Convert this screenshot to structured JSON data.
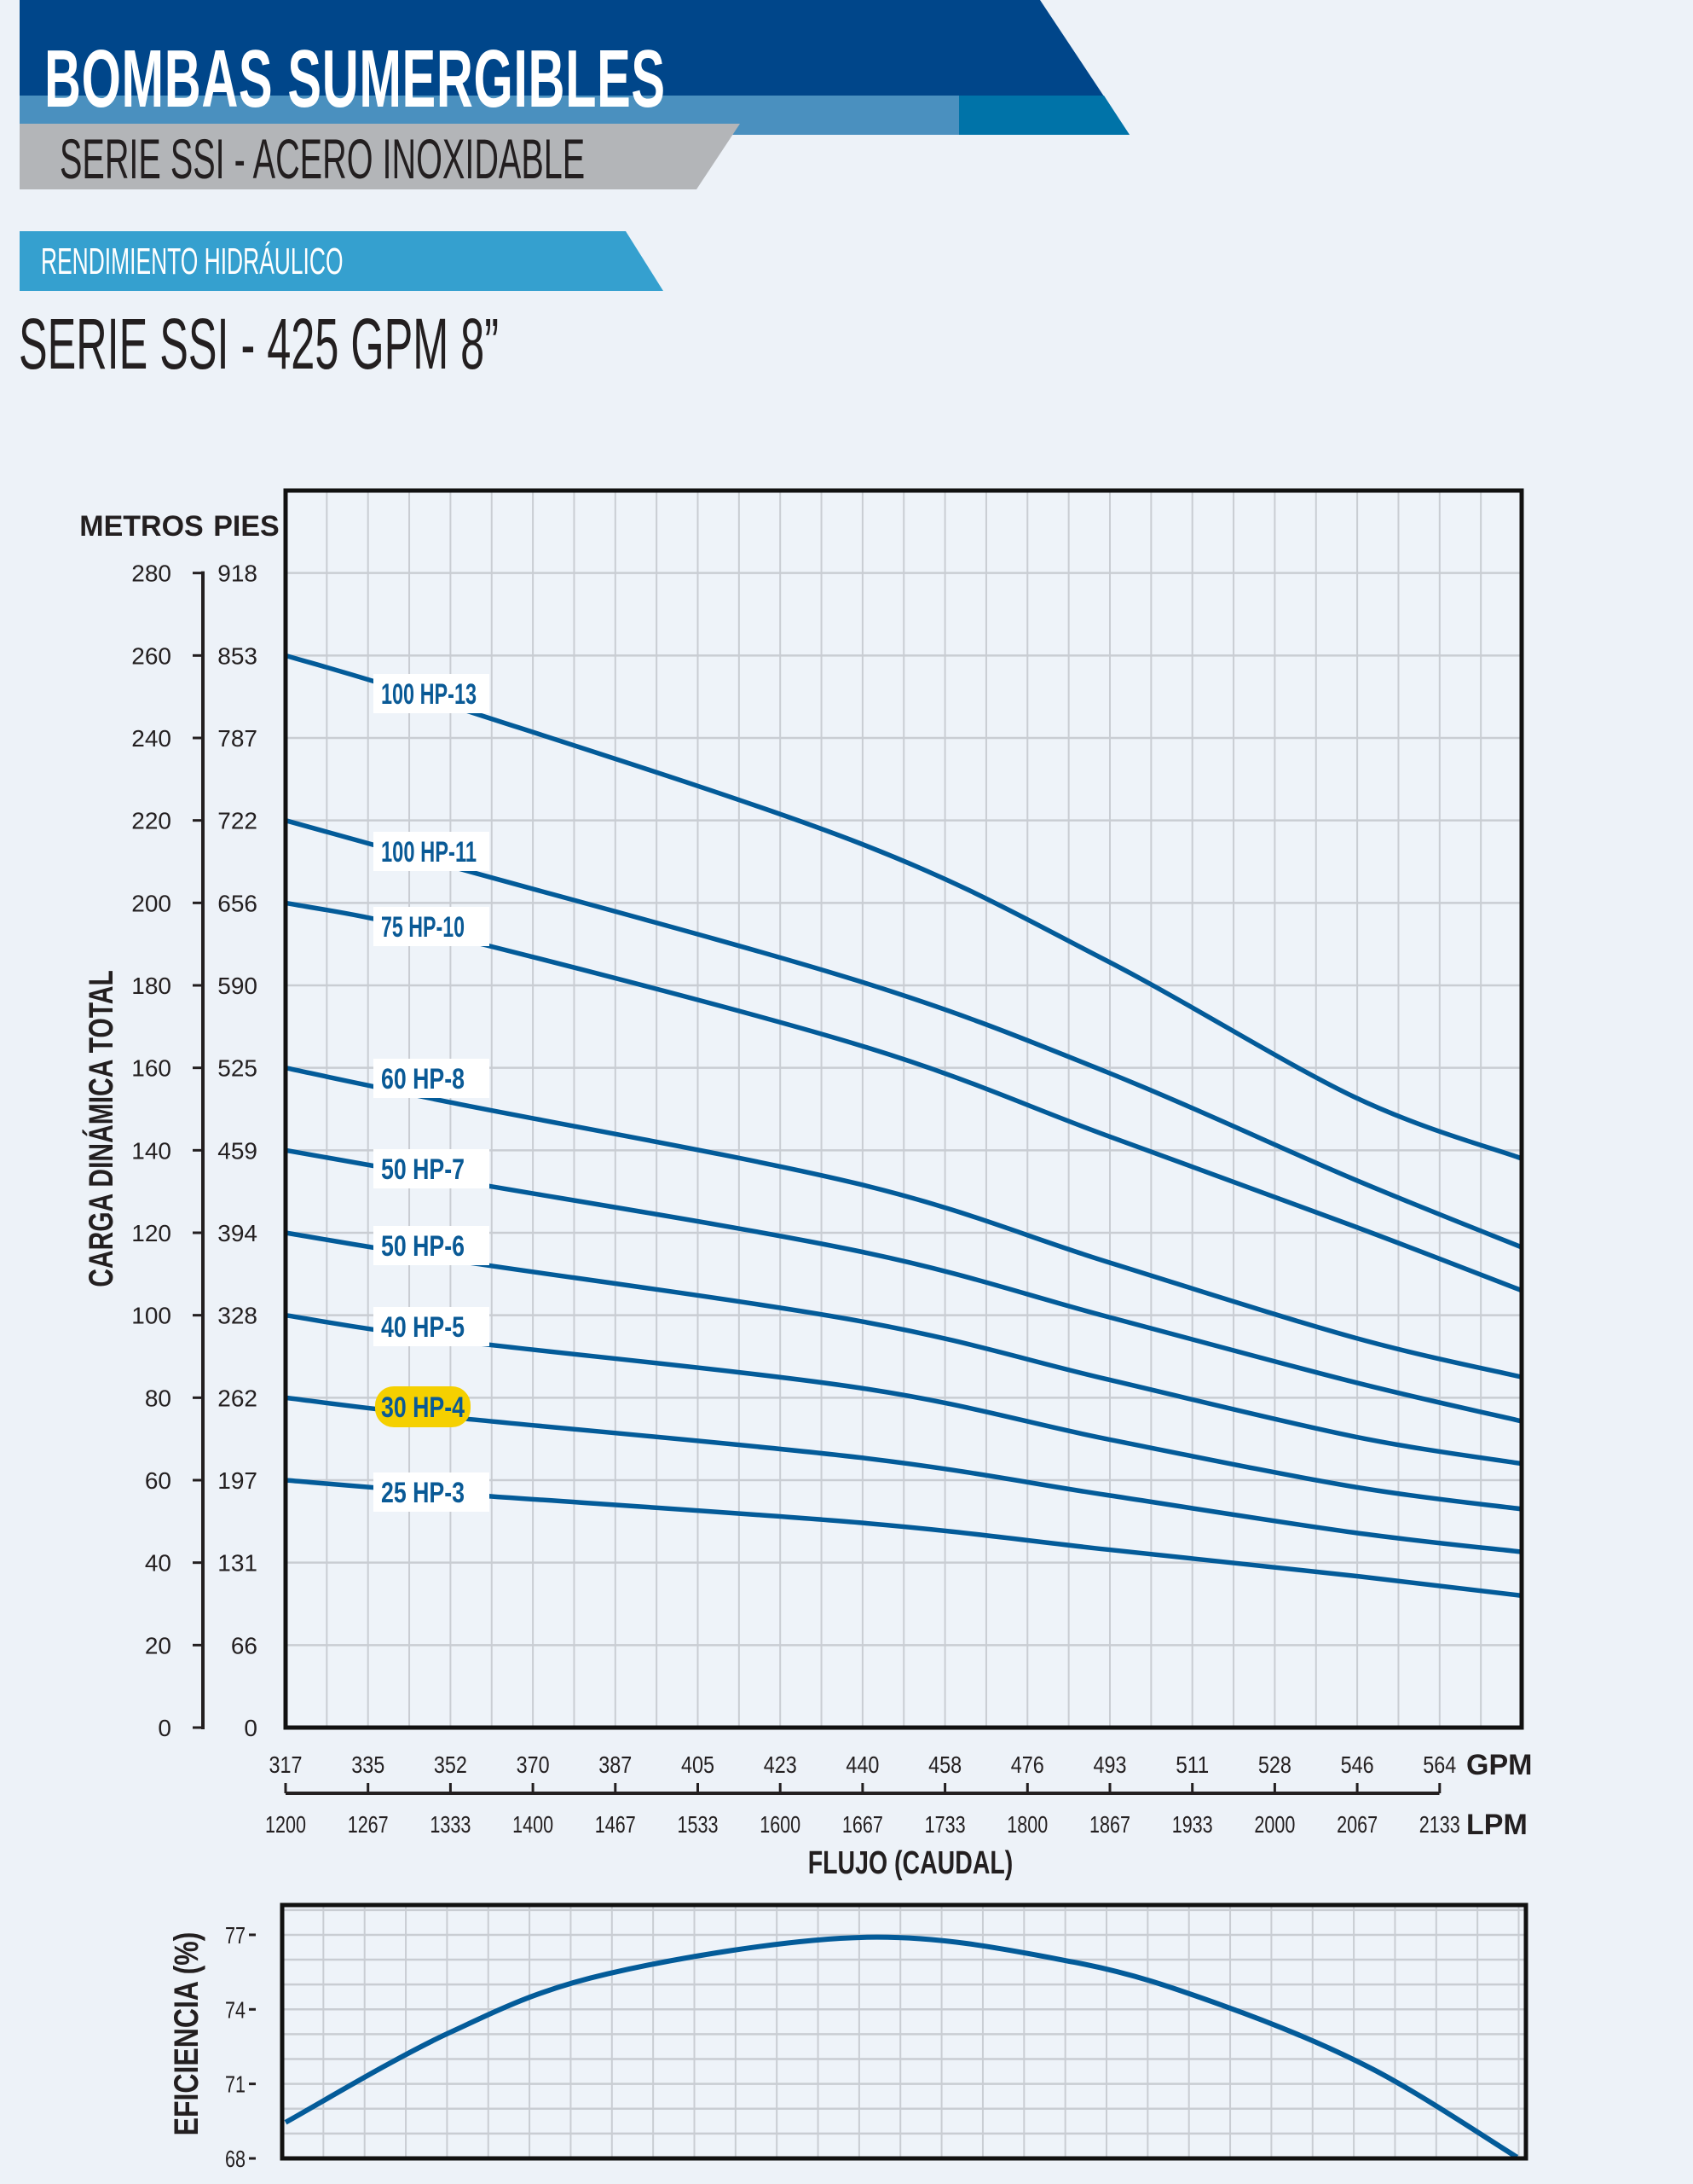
{
  "header": {
    "title": "BOMBAS  SUMERGIBLES",
    "subtitle": "SERIE SSI - ACERO INOXIDABLE",
    "section": "RENDIMIENTO HIDRÁULICO",
    "model": "SERIE SSI - 425 GPM 8”"
  },
  "colors": {
    "dark_blue": "#00468a",
    "mid_blue": "#4a90bf",
    "accent_blue": "#0073a8",
    "section_blue": "#35a0cf",
    "gray_band": "#b3b5b8",
    "curve": "#035b99",
    "highlight": "#f5d000"
  },
  "chart_data": [
    {
      "type": "line",
      "title": "",
      "ylabel": "CARGA DINÁMICA TOTAL",
      "ylabel_left_unit": "METROS",
      "ylabel_right_unit": "PIES",
      "xlabel": "FLUJO (CAUDAL)",
      "x_unit_top": "GPM",
      "x_unit_bottom": "LPM",
      "xlim": [
        317,
        582
      ],
      "ylim": [
        0,
        300
      ],
      "grid": true,
      "yticks_metros": [
        "0",
        "20",
        "40",
        "60",
        "80",
        "100",
        "120",
        "140",
        "160",
        "180",
        "200",
        "220",
        "240",
        "260",
        "280"
      ],
      "yticks_pies": [
        "0",
        "66",
        "131",
        "197",
        "262",
        "328",
        "394",
        "459",
        "525",
        "590",
        "656",
        "722",
        "787",
        "853",
        "918"
      ],
      "xticks_gpm": [
        "317",
        "335",
        "352",
        "370",
        "387",
        "405",
        "423",
        "440",
        "458",
        "476",
        "493",
        "511",
        "528",
        "546",
        "564"
      ],
      "xticks_lpm": [
        "1200",
        "1267",
        "1333",
        "1400",
        "1467",
        "1533",
        "1600",
        "1667",
        "1733",
        "1800",
        "1867",
        "1933",
        "2000",
        "2067",
        "2133"
      ],
      "x": [
        317,
        352,
        440,
        493,
        546,
        582
      ],
      "series": [
        {
          "name": "100 HP-13",
          "values": [
            260,
            248,
            214.5,
            186,
            153,
            138
          ]
        },
        {
          "name": "100 HP-11",
          "values": [
            220,
            209,
            181,
            159,
            133,
            116.5
          ]
        },
        {
          "name": "75 HP-10",
          "values": [
            200,
            192,
            165.5,
            143.6,
            121.6,
            106
          ]
        },
        {
          "name": "60 HP-8",
          "values": [
            160,
            151.7,
            131.8,
            113,
            94.6,
            85
          ]
        },
        {
          "name": "50 HP-7",
          "values": [
            140,
            133,
            115.5,
            99.7,
            83.8,
            74.3
          ]
        },
        {
          "name": "50 HP-6",
          "values": [
            120,
            113.5,
            98.6,
            84.5,
            70.6,
            64
          ]
        },
        {
          "name": "40 HP-5",
          "values": [
            100,
            94,
            82.4,
            70,
            58.4,
            53
          ]
        },
        {
          "name": "30 HP-4",
          "values": [
            80,
            75.3,
            65.5,
            56.4,
            47.3,
            42.6
          ],
          "highlighted": true
        },
        {
          "name": "25 HP-3",
          "values": [
            60,
            56.8,
            49.7,
            43.2,
            36.8,
            32
          ]
        }
      ]
    },
    {
      "type": "line",
      "ylabel": "EFICIENCIA (%)",
      "xlim": [
        317,
        582
      ],
      "ylim": [
        68,
        78.2
      ],
      "grid": true,
      "yticks": [
        "68",
        "71",
        "74",
        "77"
      ],
      "x": [
        317,
        352,
        386,
        441,
        486,
        518,
        550,
        581
      ],
      "values": [
        69.45,
        73.05,
        75.43,
        76.9,
        75.9,
        74.15,
        71.6,
        68.05
      ]
    }
  ]
}
